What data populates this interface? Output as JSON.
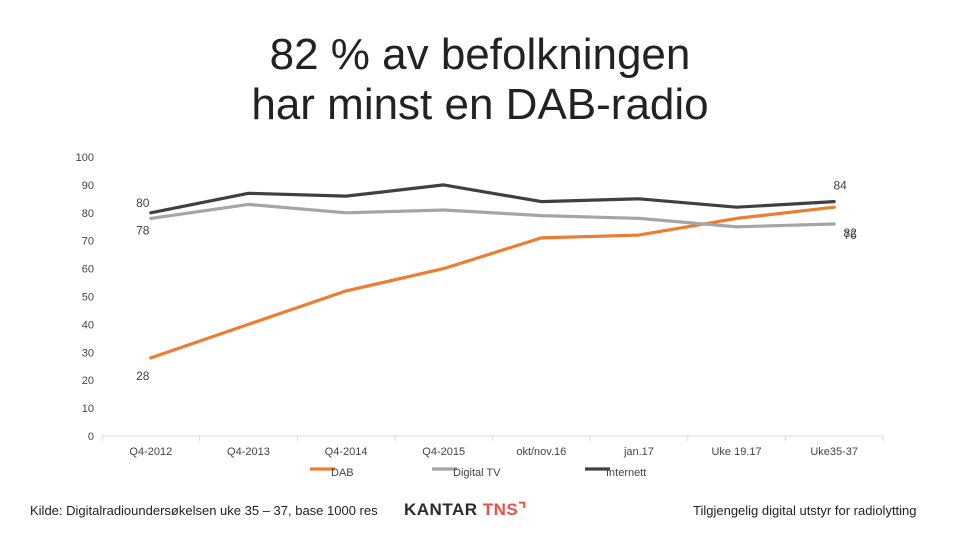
{
  "title": {
    "line1": "82 % av befolkningen",
    "line2": "har minst en DAB-radio"
  },
  "chart_data": {
    "type": "line",
    "categories": [
      "Q4-2012",
      "Q4-2013",
      "Q4-2014",
      "Q4-2015",
      "okt/nov.16",
      "jan.17",
      "Uke 19.17",
      "Uke35-37"
    ],
    "ylim": [
      0,
      100
    ],
    "yticks": [
      0,
      10,
      20,
      30,
      40,
      50,
      60,
      70,
      80,
      90,
      100
    ],
    "grid": false,
    "legend_position": "bottom",
    "series": [
      {
        "name": "DAB",
        "color": "#ED7D31",
        "values": [
          28,
          40,
          52,
          60,
          71,
          72,
          78,
          82
        ],
        "labels": {
          "0": "28",
          "7": "82"
        }
      },
      {
        "name": "Digital TV",
        "color": "#A5A5A5",
        "values": [
          78,
          83,
          80,
          81,
          79,
          78,
          75,
          76
        ],
        "labels": {
          "0": "78",
          "7": "76"
        }
      },
      {
        "name": "Internett",
        "color": "#404040",
        "values": [
          80,
          87,
          86,
          90,
          84,
          85,
          82,
          84
        ],
        "labels": {
          "0": "80",
          "7": "84"
        }
      }
    ]
  },
  "footer": {
    "source": "Kilde: Digitalradioundersøkelsen uke 35 – 37, base 1000 res",
    "brand_part1": "KANTAR ",
    "brand_part2": "TNS",
    "brand_mark": "⌝",
    "note": "Tilgjengelig digital utstyr for radiolytting"
  }
}
